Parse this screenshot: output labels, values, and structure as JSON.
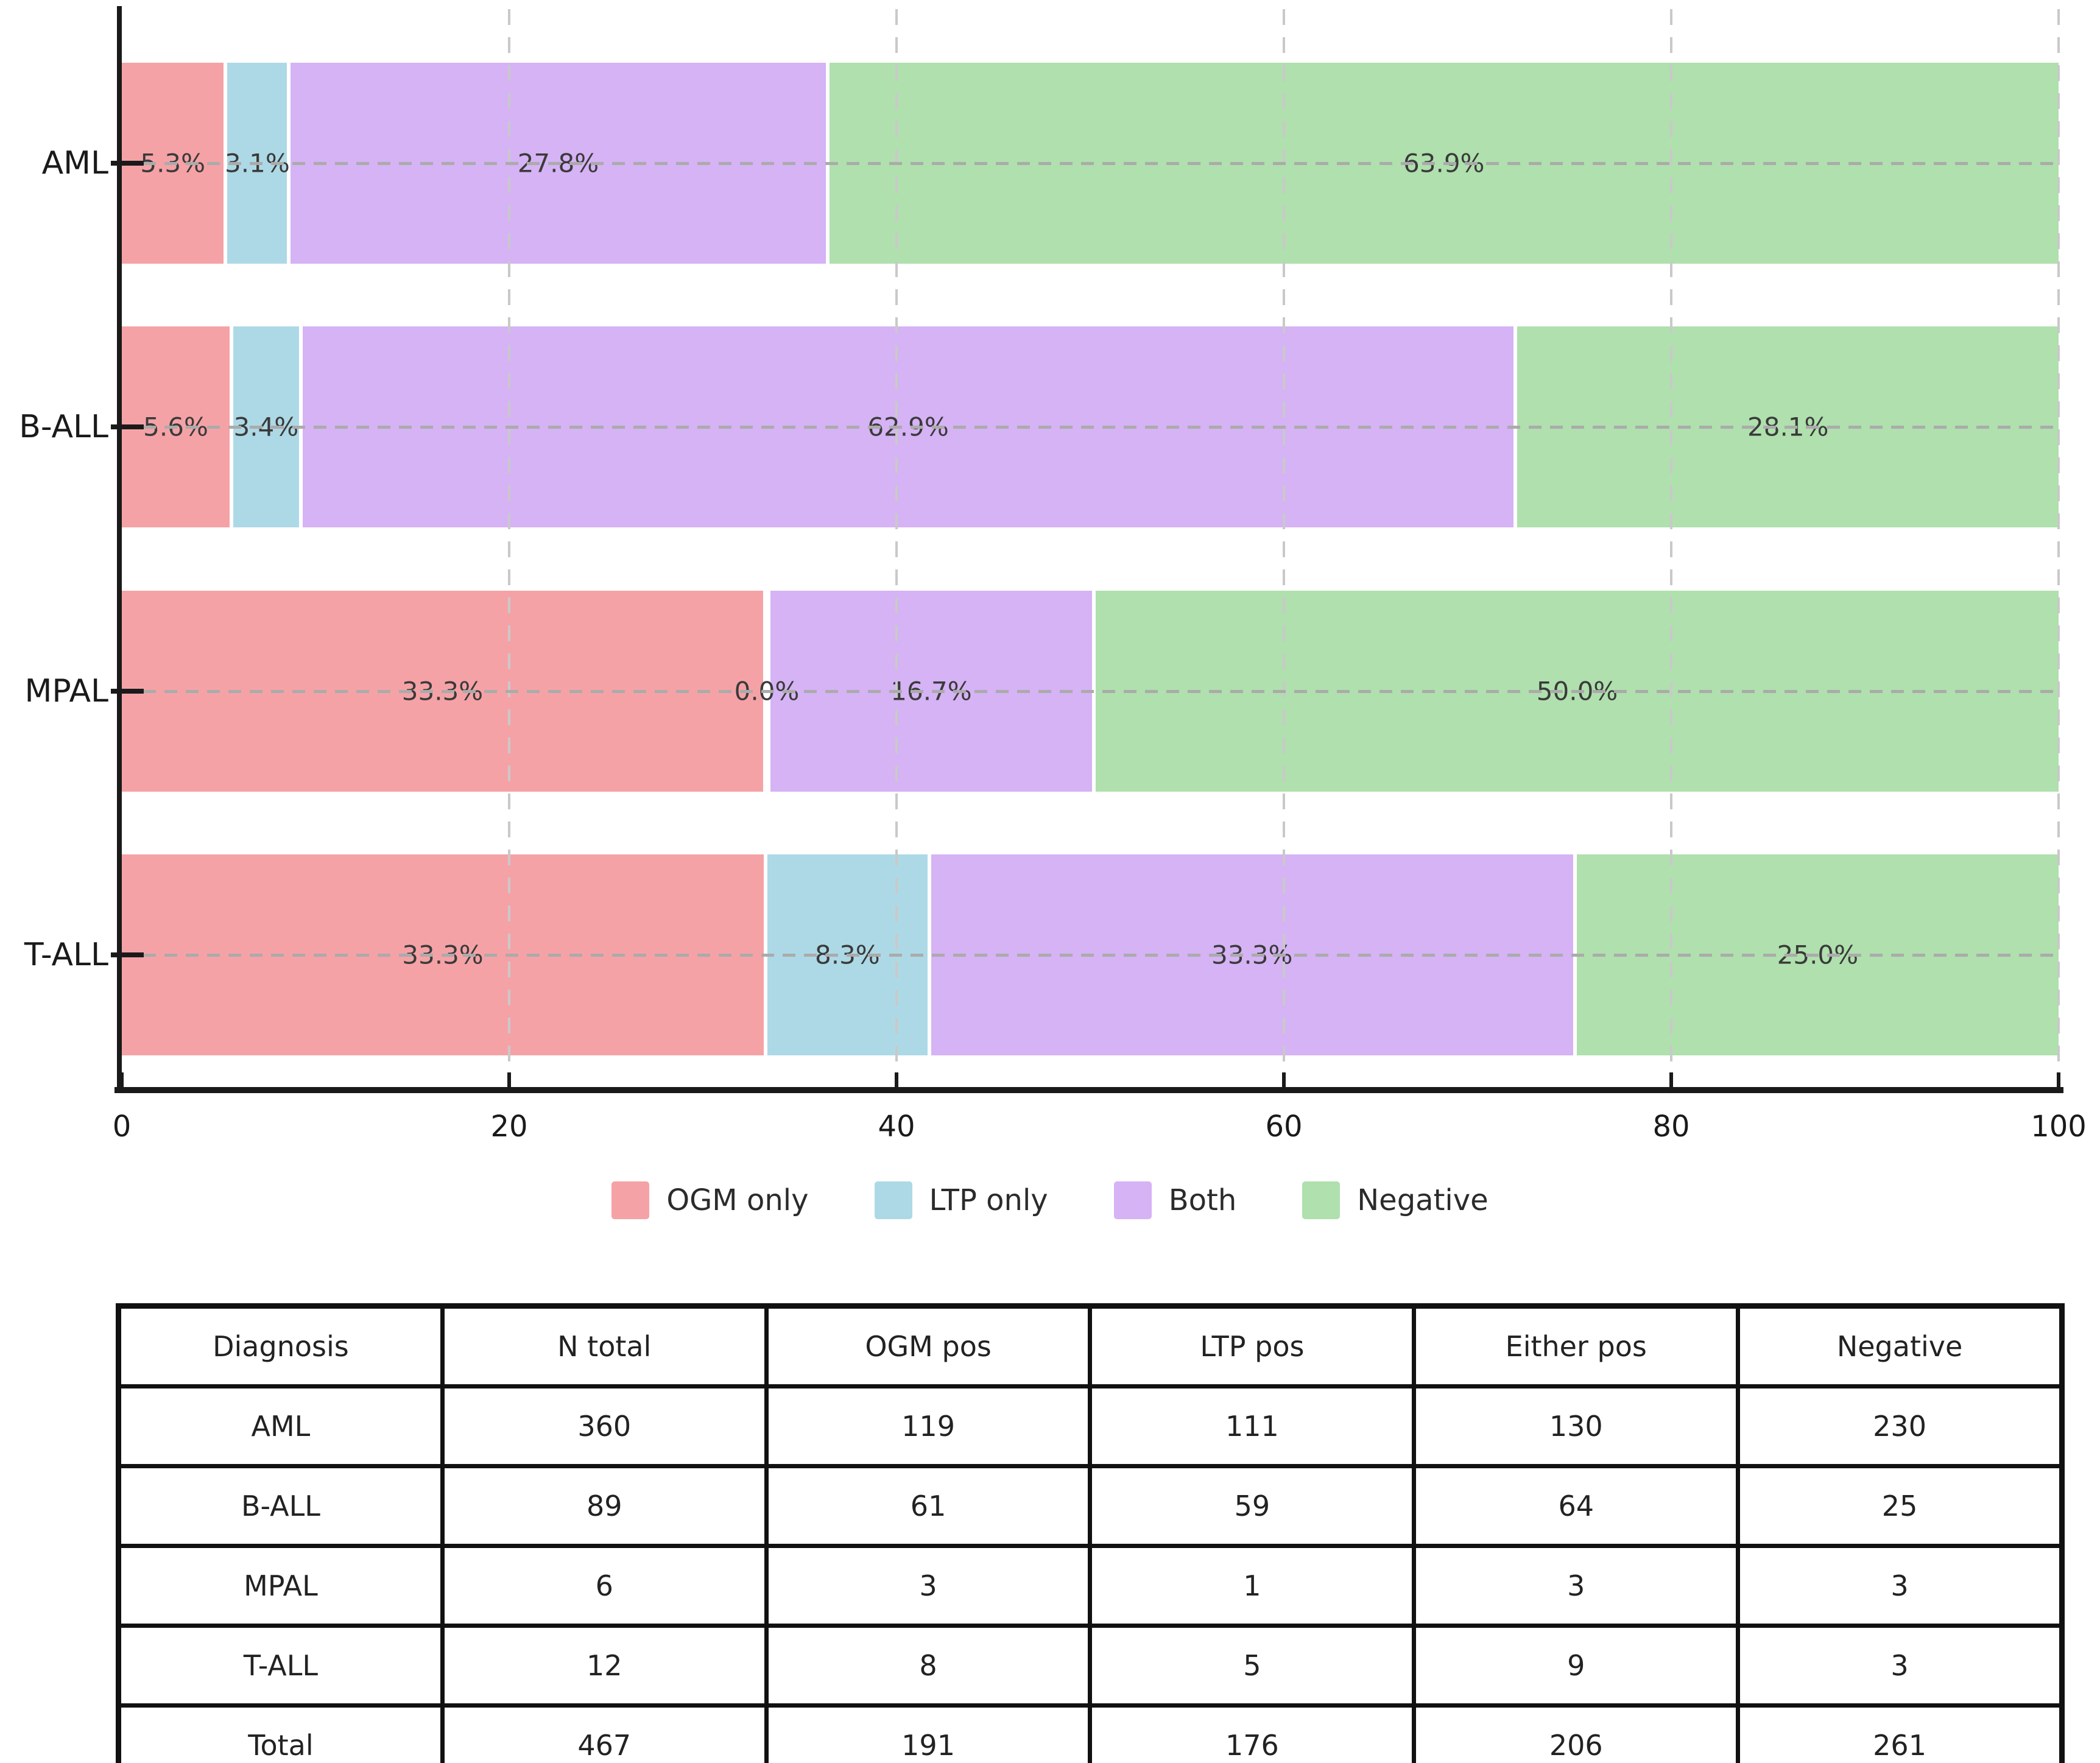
{
  "chart_data": {
    "type": "bar",
    "orientation": "horizontal",
    "stacked": true,
    "title": "",
    "xlabel": "",
    "ylabel": "",
    "xlim": [
      0,
      100
    ],
    "xticks": [
      0,
      20,
      40,
      60,
      80,
      100
    ],
    "grid": "dashed",
    "legend_position": "bottom",
    "categories": [
      "AML",
      "B-ALL",
      "MPAL",
      "T-ALL"
    ],
    "series": [
      {
        "name": "OGM only",
        "color": "#F5A2A6",
        "values": [
          5.3,
          5.6,
          33.3,
          33.3
        ]
      },
      {
        "name": "LTP only",
        "color": "#ADD9E6",
        "values": [
          3.1,
          3.4,
          0.0,
          8.3
        ]
      },
      {
        "name": "Both",
        "color": "#D5B3F5",
        "values": [
          27.8,
          62.9,
          16.7,
          33.3
        ]
      },
      {
        "name": "Negative",
        "color": "#AFE0AD",
        "values": [
          63.9,
          28.1,
          50.0,
          25.0
        ]
      }
    ],
    "bar_labels": [
      [
        "5.3%",
        "3.1%",
        "27.8%",
        "63.9%"
      ],
      [
        "5.6%",
        "3.4%",
        "62.9%",
        "28.1%"
      ],
      [
        "33.3%",
        "0.0%",
        "16.7%",
        "50.0%"
      ],
      [
        "33.3%",
        "8.3%",
        "33.3%",
        "25.0%"
      ]
    ]
  },
  "table": {
    "headers": [
      "Diagnosis",
      "N total",
      "OGM pos",
      "LTP pos",
      "Either pos",
      "Negative"
    ],
    "rows": [
      [
        "AML",
        "360",
        "119",
        "111",
        "130",
        "230"
      ],
      [
        "B-ALL",
        "89",
        "61",
        "59",
        "64",
        "25"
      ],
      [
        "MPAL",
        "6",
        "3",
        "1",
        "3",
        "3"
      ],
      [
        "T-ALL",
        "12",
        "8",
        "5",
        "9",
        "3"
      ],
      [
        "Total",
        "467",
        "191",
        "176",
        "206",
        "261"
      ]
    ]
  }
}
